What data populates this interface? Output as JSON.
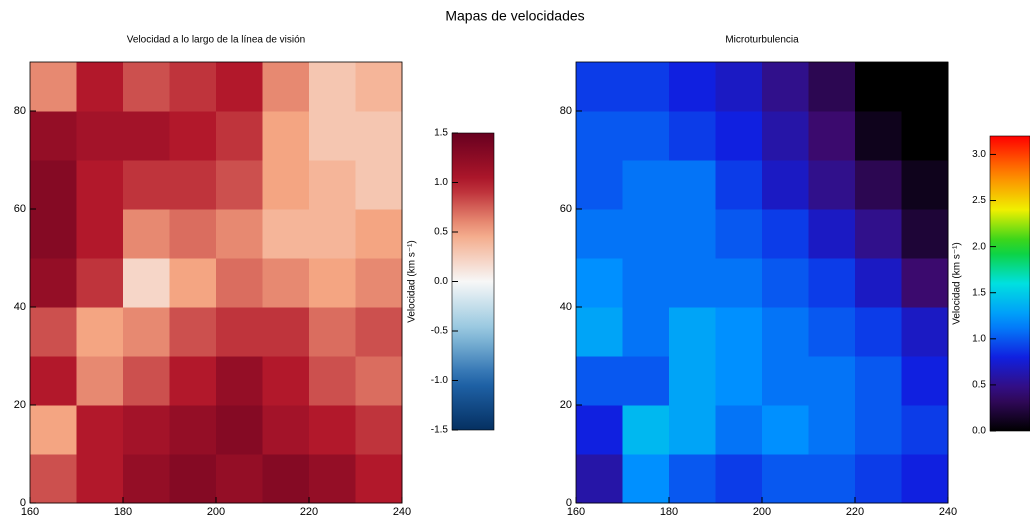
{
  "title": "Mapas de velocidades",
  "chart_data": [
    {
      "type": "heatmap",
      "title": "Velocidad a lo largo de la línea de visión",
      "colormap": "RdBu_r",
      "x_edges": [
        160,
        170,
        180,
        190,
        200,
        210,
        220,
        230,
        240
      ],
      "y_edges": [
        0,
        10,
        20,
        30,
        40,
        50,
        60,
        70,
        80,
        90
      ],
      "z": [
        [
          0.8,
          1.0,
          1.2,
          1.3,
          1.2,
          1.3,
          1.2,
          1.0
        ],
        [
          0.5,
          1.0,
          1.1,
          1.2,
          1.3,
          1.1,
          1.0,
          0.9
        ],
        [
          1.0,
          0.6,
          0.8,
          1.0,
          1.2,
          1.0,
          0.8,
          0.7
        ],
        [
          0.8,
          0.5,
          0.6,
          0.8,
          0.9,
          0.9,
          0.7,
          0.8
        ],
        [
          1.2,
          0.9,
          0.2,
          0.5,
          0.7,
          0.6,
          0.5,
          0.6
        ],
        [
          1.3,
          1.0,
          0.6,
          0.7,
          0.6,
          0.4,
          0.4,
          0.5
        ],
        [
          1.3,
          1.0,
          0.9,
          0.9,
          0.8,
          0.5,
          0.4,
          0.3
        ],
        [
          1.2,
          1.1,
          1.1,
          1.0,
          0.9,
          0.5,
          0.3,
          0.3
        ],
        [
          0.6,
          1.0,
          0.8,
          0.9,
          1.0,
          0.6,
          0.3,
          0.4
        ]
      ],
      "xlim": [
        160,
        240
      ],
      "xticks": [
        160,
        180,
        200,
        220,
        240
      ],
      "ylim": [
        0,
        90
      ],
      "yticks": [
        0,
        20,
        40,
        60,
        80
      ],
      "clim": [
        -1.5,
        1.5
      ],
      "cticks": [
        -1.5,
        {
          "value": -1,
          "label": "-1.0"
        },
        -0.5,
        {
          "value": 0,
          "label": "0.0"
        },
        0.5,
        {
          "value": 1,
          "label": "1.0"
        },
        1.5
      ],
      "colorbar_label": "Velocidad (km s⁻¹)"
    },
    {
      "type": "heatmap",
      "title": "Microturbulencia",
      "colormap": "rainbow",
      "x_edges": [
        160,
        170,
        180,
        190,
        200,
        210,
        220,
        230,
        240
      ],
      "y_edges": [
        0,
        10,
        20,
        30,
        40,
        50,
        60,
        70,
        80,
        90
      ],
      "z": [
        [
          0.6,
          1.2,
          1.0,
          0.9,
          1.0,
          1.0,
          0.9,
          0.8
        ],
        [
          0.8,
          1.4,
          1.3,
          1.1,
          1.2,
          1.1,
          1.0,
          0.9
        ],
        [
          1.0,
          1.0,
          1.3,
          1.2,
          1.1,
          1.1,
          1.0,
          0.8
        ],
        [
          1.3,
          1.1,
          1.3,
          1.2,
          1.1,
          1.0,
          0.9,
          0.7
        ],
        [
          1.2,
          1.1,
          1.1,
          1.1,
          1.0,
          0.9,
          0.7,
          0.4
        ],
        [
          1.1,
          1.1,
          1.1,
          1.0,
          0.9,
          0.7,
          0.5,
          0.2
        ],
        [
          1.0,
          1.1,
          1.1,
          0.9,
          0.7,
          0.5,
          0.3,
          0.1
        ],
        [
          1.0,
          1.0,
          0.9,
          0.8,
          0.6,
          0.4,
          0.1,
          0.0
        ],
        [
          0.9,
          0.9,
          0.8,
          0.7,
          0.5,
          0.3,
          0.0,
          0.0
        ]
      ],
      "xlim": [
        160,
        240
      ],
      "xticks": [
        160,
        180,
        200,
        220,
        240
      ],
      "ylim": [
        0,
        90
      ],
      "yticks": [
        0,
        20,
        40,
        60,
        80
      ],
      "clim": [
        0,
        3.2
      ],
      "cticks": [
        {
          "value": 0,
          "label": "0.0"
        },
        0.5,
        {
          "value": 1,
          "label": "1.0"
        },
        1.5,
        {
          "value": 2,
          "label": "2.0"
        },
        2.5,
        {
          "value": 3,
          "label": "3.0"
        }
      ],
      "colorbar_label": "Velocidad (km s⁻¹)"
    }
  ]
}
